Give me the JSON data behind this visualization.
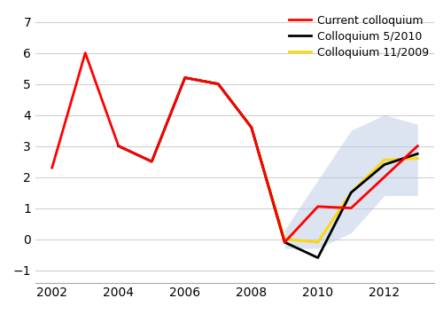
{
  "title": "",
  "xlim": [
    2001.5,
    2013.5
  ],
  "ylim": [
    -1.4,
    7.4
  ],
  "yticks": [
    -1,
    0,
    1,
    2,
    3,
    4,
    5,
    6,
    7
  ],
  "xticks": [
    2002,
    2004,
    2006,
    2008,
    2010,
    2012
  ],
  "red_x": [
    2002,
    2003,
    2004,
    2005,
    2006,
    2007,
    2008,
    2009,
    2010,
    2011,
    2012,
    2013
  ],
  "red_y": [
    2.3,
    6.0,
    3.0,
    2.5,
    5.2,
    5.0,
    3.6,
    -0.1,
    1.05,
    1.0,
    2.0,
    3.0
  ],
  "black_x": [
    2004,
    2005,
    2006,
    2007,
    2008,
    2009,
    2010,
    2011,
    2012,
    2013
  ],
  "black_y": [
    3.0,
    2.5,
    5.2,
    5.0,
    3.6,
    -0.1,
    -0.6,
    1.5,
    2.4,
    2.75
  ],
  "yellow_x": [
    2006,
    2007,
    2008,
    2009,
    2010,
    2011,
    2012,
    2013
  ],
  "yellow_y": [
    5.2,
    5.0,
    3.6,
    0.0,
    -0.1,
    1.5,
    2.55,
    2.6
  ],
  "shade_x": [
    2009,
    2010,
    2011,
    2012,
    2013
  ],
  "shade_upper": [
    0.3,
    1.9,
    3.5,
    4.0,
    3.7
  ],
  "shade_lower": [
    -0.3,
    -0.3,
    0.2,
    1.4,
    1.4
  ],
  "red_color": "#ff0000",
  "black_color": "#000000",
  "yellow_color": "#ffd700",
  "shade_color": "#b0c4de",
  "shade_alpha": 0.45,
  "line_width": 2.0,
  "legend_labels": [
    "Current colloquium",
    "Colloquium 5/2010",
    "Colloquium 11/2009"
  ],
  "grid_color": "#d0d0d0",
  "bg_color": "#ffffff"
}
